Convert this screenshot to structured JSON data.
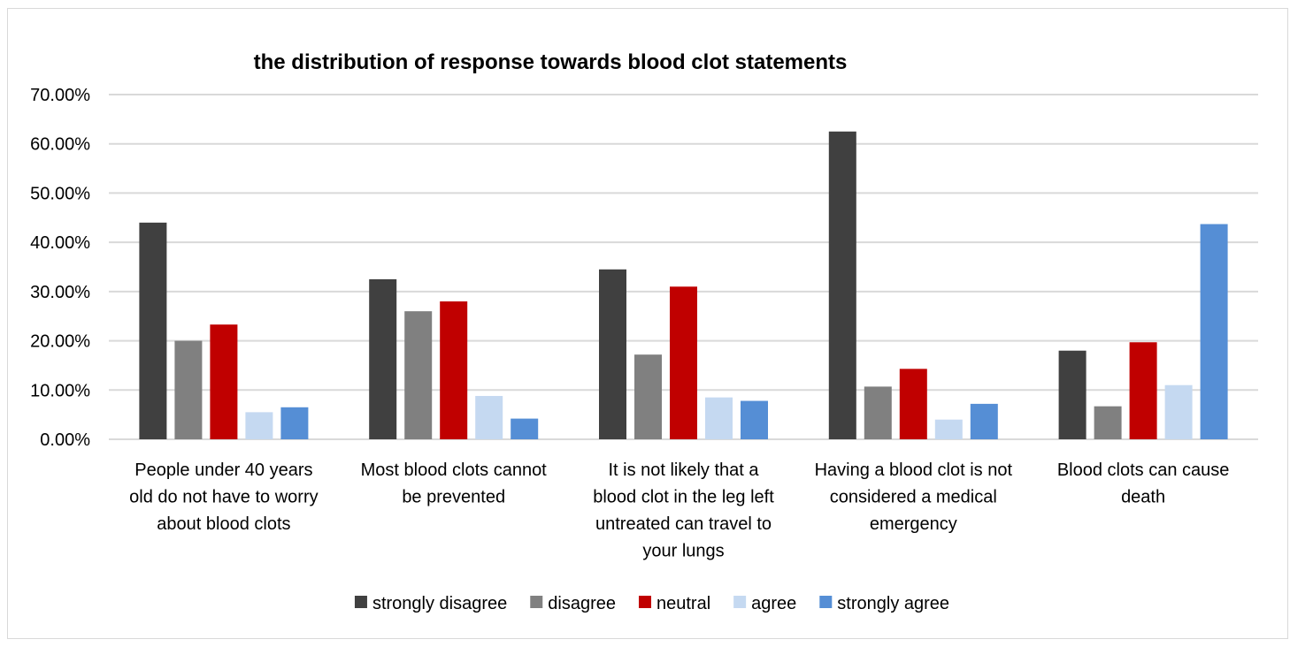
{
  "chart_data": {
    "type": "bar",
    "title": "the distribution of response towards blood clot statements",
    "xlabel": "",
    "ylabel": "",
    "ylim": [
      0,
      0.7
    ],
    "yticks": [
      0,
      0.1,
      0.2,
      0.3,
      0.4,
      0.5,
      0.6,
      0.7
    ],
    "ytick_labels": [
      "0.00%",
      "10.00%",
      "20.00%",
      "30.00%",
      "40.00%",
      "50.00%",
      "60.00%",
      "70.00%"
    ],
    "grid": true,
    "legend_position": "bottom",
    "categories": [
      [
        "People under 40 years",
        "old do not have to worry",
        "about blood clots"
      ],
      [
        "Most blood clots cannot",
        "be prevented"
      ],
      [
        "It is not likely that a",
        "blood clot in the leg left",
        "untreated can travel to",
        "your lungs"
      ],
      [
        "Having a blood clot is not",
        "considered a medical",
        "emergency"
      ],
      [
        "Blood clots can cause",
        "death"
      ]
    ],
    "series": [
      {
        "name": "strongly disagree",
        "color": "#404040",
        "values": [
          0.44,
          0.325,
          0.345,
          0.625,
          0.18
        ]
      },
      {
        "name": "disagree",
        "color": "#808080",
        "values": [
          0.2,
          0.26,
          0.172,
          0.107,
          0.067
        ]
      },
      {
        "name": "neutral",
        "color": "#c00000",
        "values": [
          0.233,
          0.28,
          0.31,
          0.143,
          0.197
        ]
      },
      {
        "name": "agree",
        "color": "#c5d9f1",
        "values": [
          0.055,
          0.088,
          0.085,
          0.04,
          0.11
        ]
      },
      {
        "name": "strongly agree",
        "color": "#558ed5",
        "values": [
          0.065,
          0.042,
          0.078,
          0.072,
          0.437
        ]
      }
    ]
  }
}
